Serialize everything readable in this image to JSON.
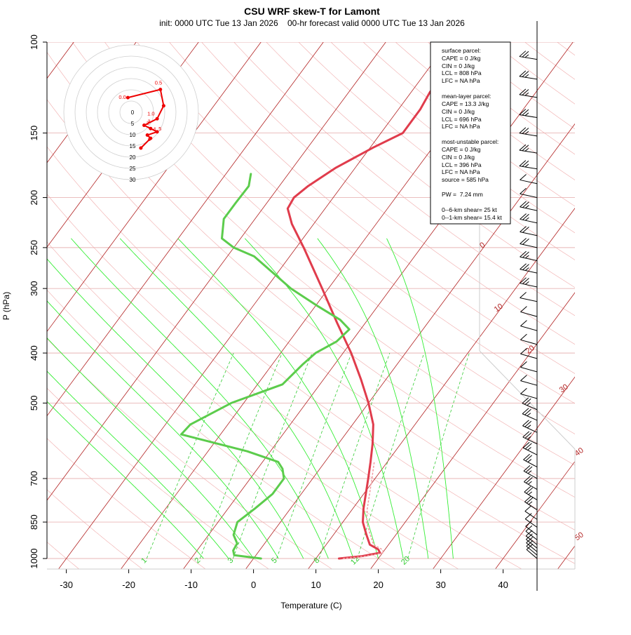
{
  "chart_data": {
    "type": "line",
    "title": "CSU WRF skew-T for Lamont",
    "subtitle": "init: 0000 UTC Tue 13 Jan 2026    00-hr forecast valid 0000 UTC Tue 13 Jan 2026",
    "xlabel": "Temperature (C)",
    "ylabel": "P (hPa)",
    "x_ticks": [
      -30,
      -20,
      -10,
      0,
      10,
      20,
      30,
      40
    ],
    "pressure_ticks": [
      100,
      150,
      200,
      250,
      300,
      400,
      500,
      700,
      850,
      1000
    ],
    "xlim": [
      -33,
      43
    ],
    "ylim_hpa": [
      1050,
      100
    ],
    "isotherm_labels": [
      "-10",
      "0",
      "10",
      "20",
      "30",
      "40",
      "50"
    ],
    "mixing_ratio_labels": [
      "1",
      "2",
      "3",
      "5",
      "8",
      "12",
      "20"
    ],
    "colors": {
      "temperature": "#e03c4c",
      "dewpoint": "#5ccc4c",
      "isotherm": "#b22222",
      "dry_adiabat": "#f0aaaa",
      "moist_adiabat": "#33ee33",
      "mixing_ratio": "#33cc33",
      "hodograph": "#ee0000"
    },
    "series": [
      {
        "name": "temperature",
        "points": [
          {
            "y": 1000,
            "x": 13.7
          },
          {
            "y": 990,
            "x": 17.0
          },
          {
            "y": 975,
            "x": 19.6
          },
          {
            "y": 960,
            "x": 18.9
          },
          {
            "y": 940,
            "x": 17.0
          },
          {
            "y": 900,
            "x": 15.3
          },
          {
            "y": 850,
            "x": 13.2
          },
          {
            "y": 800,
            "x": 11.7
          },
          {
            "y": 700,
            "x": 8.9
          },
          {
            "y": 650,
            "x": 7.3
          },
          {
            "y": 600,
            "x": 5.5
          },
          {
            "y": 550,
            "x": 3.3
          },
          {
            "y": 500,
            "x": 0.0
          },
          {
            "y": 450,
            "x": -4.0
          },
          {
            "y": 400,
            "x": -8.7
          },
          {
            "y": 350,
            "x": -14.5
          },
          {
            "y": 300,
            "x": -21.0
          },
          {
            "y": 250,
            "x": -28.8
          },
          {
            "y": 225,
            "x": -33.5
          },
          {
            "y": 210,
            "x": -36.0
          },
          {
            "y": 200,
            "x": -36.3
          },
          {
            "y": 190,
            "x": -35.4
          },
          {
            "y": 175,
            "x": -33.1
          },
          {
            "y": 160,
            "x": -29.5
          },
          {
            "y": 150,
            "x": -26.5
          },
          {
            "y": 135,
            "x": -26.5
          },
          {
            "y": 125,
            "x": -27.0
          },
          {
            "y": 115,
            "x": -26.8
          },
          {
            "y": 105,
            "x": -27.2
          }
        ]
      },
      {
        "name": "dewpoint",
        "points": [
          {
            "y": 1000,
            "x": 1.2
          },
          {
            "y": 985,
            "x": -3.5
          },
          {
            "y": 965,
            "x": -4.2
          },
          {
            "y": 935,
            "x": -4.4
          },
          {
            "y": 900,
            "x": -6.0
          },
          {
            "y": 850,
            "x": -6.9
          },
          {
            "y": 800,
            "x": -5.7
          },
          {
            "y": 750,
            "x": -4.6
          },
          {
            "y": 700,
            "x": -4.6
          },
          {
            "y": 670,
            "x": -6.0
          },
          {
            "y": 650,
            "x": -7.5
          },
          {
            "y": 620,
            "x": -13.7
          },
          {
            "y": 575,
            "x": -26.3
          },
          {
            "y": 550,
            "x": -26.0
          },
          {
            "y": 500,
            "x": -22.0
          },
          {
            "y": 460,
            "x": -16.0
          },
          {
            "y": 420,
            "x": -15.1
          },
          {
            "y": 400,
            "x": -14.4
          },
          {
            "y": 380,
            "x": -12.4
          },
          {
            "y": 360,
            "x": -11.8
          },
          {
            "y": 345,
            "x": -14.4
          },
          {
            "y": 325,
            "x": -19.5
          },
          {
            "y": 300,
            "x": -26.0
          },
          {
            "y": 260,
            "x": -35.7
          },
          {
            "y": 250,
            "x": -40.0
          },
          {
            "y": 240,
            "x": -43.0
          },
          {
            "y": 220,
            "x": -45.0
          },
          {
            "y": 205,
            "x": -45.0
          },
          {
            "y": 190,
            "x": -44.9
          },
          {
            "y": 180,
            "x": -46.0
          }
        ]
      }
    ],
    "stats": {
      "surface": {
        "title": "surface parcel:",
        "lines": [
          "CAPE = 0 J/kg",
          "CIN = 0 J/kg",
          "LCL = 808 hPa",
          "LFC = NA hPa"
        ]
      },
      "mean_layer": {
        "title": "mean-layer parcel:",
        "lines": [
          "CAPE = 13.3 J/kg",
          "CIN = 0 J/kg",
          "LCL = 696 hPa",
          "LFC = NA hPa"
        ]
      },
      "most_unstable": {
        "title": "most-unstable parcel:",
        "lines": [
          "CAPE = 0 J/kg",
          "CIN = 0 J/kg",
          "LCL = 396 hPa",
          "LFC = NA hPa",
          "source = 585 hPa"
        ]
      },
      "pw": "PW =  7.24 mm",
      "shear": [
        "0--6-km shear= 25 kt",
        "0--1-km shear= 15.4 kt"
      ]
    },
    "hodograph": {
      "ring_labels": [
        "0",
        "5",
        "10",
        "15",
        "20",
        "25",
        "30"
      ],
      "point_labels": [
        "0.0",
        "0.5",
        "1.0",
        "2",
        "3",
        "4",
        "5",
        "6"
      ],
      "points": [
        {
          "u": -1,
          "v": 4.5
        },
        {
          "u": 9,
          "v": 7
        },
        {
          "u": 10,
          "v": 2
        },
        {
          "u": 8,
          "v": -2
        },
        {
          "u": 4,
          "v": -4
        },
        {
          "u": 6,
          "v": -5
        },
        {
          "u": 8,
          "v": -6
        },
        {
          "u": 5,
          "v": -7
        },
        {
          "u": 6,
          "v": -8
        },
        {
          "u": 3,
          "v": -11
        }
      ]
    },
    "wind_barbs": [
      {
        "p": 108,
        "kt": 15
      },
      {
        "p": 118,
        "kt": 15
      },
      {
        "p": 128,
        "kt": 15
      },
      {
        "p": 140,
        "kt": 15
      },
      {
        "p": 152,
        "kt": 15
      },
      {
        "p": 164,
        "kt": 15
      },
      {
        "p": 176,
        "kt": 15
      },
      {
        "p": 188,
        "kt": 10
      },
      {
        "p": 200,
        "kt": 10
      },
      {
        "p": 212,
        "kt": 15
      },
      {
        "p": 224,
        "kt": 15
      },
      {
        "p": 237,
        "kt": 20
      },
      {
        "p": 250,
        "kt": 20
      },
      {
        "p": 265,
        "kt": 15
      },
      {
        "p": 280,
        "kt": 15
      },
      {
        "p": 298,
        "kt": 15
      },
      {
        "p": 318,
        "kt": 10
      },
      {
        "p": 340,
        "kt": 10
      },
      {
        "p": 362,
        "kt": 10
      },
      {
        "p": 385,
        "kt": 10
      },
      {
        "p": 410,
        "kt": 10
      },
      {
        "p": 435,
        "kt": 10
      },
      {
        "p": 462,
        "kt": 10
      },
      {
        "p": 490,
        "kt": 10
      },
      {
        "p": 515,
        "kt": 15
      },
      {
        "p": 540,
        "kt": 15
      },
      {
        "p": 570,
        "kt": 15
      },
      {
        "p": 600,
        "kt": 15
      },
      {
        "p": 630,
        "kt": 15
      },
      {
        "p": 665,
        "kt": 15
      },
      {
        "p": 700,
        "kt": 15
      },
      {
        "p": 735,
        "kt": 15
      },
      {
        "p": 770,
        "kt": 15
      },
      {
        "p": 805,
        "kt": 15
      },
      {
        "p": 840,
        "kt": 10
      },
      {
        "p": 870,
        "kt": 10
      },
      {
        "p": 900,
        "kt": 10
      },
      {
        "p": 920,
        "kt": 10
      },
      {
        "p": 940,
        "kt": 10
      },
      {
        "p": 955,
        "kt": 10
      },
      {
        "p": 970,
        "kt": 10
      },
      {
        "p": 985,
        "kt": 10
      },
      {
        "p": 1000,
        "kt": 10
      }
    ]
  }
}
